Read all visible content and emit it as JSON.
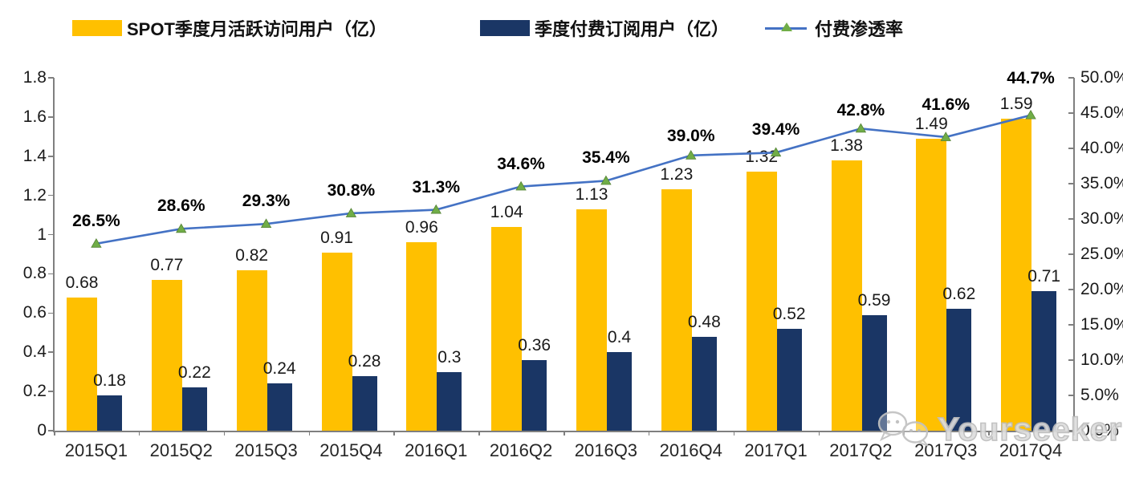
{
  "legend": {
    "items": [
      {
        "label": "SPOT季度月活跃访问用户（亿）",
        "color": "#FFC000",
        "type": "bar-swatch"
      },
      {
        "label": "季度付费订阅用户（亿）",
        "color": "#1A3665",
        "type": "bar-swatch"
      },
      {
        "label": "付费渗透率",
        "color": "#4472C4",
        "marker_color": "#70AD47",
        "type": "line-swatch"
      }
    ]
  },
  "chart_data": {
    "type": "combo-bar-line",
    "categories": [
      "2015Q1",
      "2015Q2",
      "2015Q3",
      "2015Q4",
      "2016Q1",
      "2016Q2",
      "2016Q3",
      "2016Q4",
      "2017Q1",
      "2017Q2",
      "2017Q3",
      "2017Q4"
    ],
    "series": [
      {
        "name": "SPOT季度月活跃访问用户（亿）",
        "type": "bar",
        "axis": "left",
        "color": "#FFC000",
        "values": [
          0.68,
          0.77,
          0.82,
          0.91,
          0.96,
          1.04,
          1.13,
          1.23,
          1.32,
          1.38,
          1.49,
          1.59
        ],
        "labels": [
          "0.68",
          "0.77",
          "0.82",
          "0.91",
          "0.96",
          "1.04",
          "1.13",
          "1.23",
          "1.32",
          "1.38",
          "1.49",
          "1.59"
        ]
      },
      {
        "name": "季度付费订阅用户（亿）",
        "type": "bar",
        "axis": "left",
        "color": "#1A3665",
        "values": [
          0.18,
          0.22,
          0.24,
          0.28,
          0.3,
          0.36,
          0.4,
          0.48,
          0.52,
          0.59,
          0.62,
          0.71
        ],
        "labels": [
          "0.18",
          "0.22",
          "0.24",
          "0.28",
          "0.3",
          "0.36",
          "0.4",
          "0.48",
          "0.52",
          "0.59",
          "0.62",
          "0.71"
        ]
      },
      {
        "name": "付费渗透率",
        "type": "line",
        "axis": "right",
        "color": "#4472C4",
        "marker": "triangle",
        "marker_color": "#70AD47",
        "values": [
          26.5,
          28.6,
          29.3,
          30.8,
          31.3,
          34.6,
          35.4,
          39.0,
          39.4,
          42.8,
          41.6,
          44.7
        ],
        "labels": [
          "26.5%",
          "28.6%",
          "29.3%",
          "30.8%",
          "31.3%",
          "34.6%",
          "35.4%",
          "39.0%",
          "39.4%",
          "42.8%",
          "41.6%",
          "44.7%"
        ]
      }
    ],
    "left_axis": {
      "min": 0,
      "max": 1.8,
      "step": 0.2,
      "ticks": [
        "0",
        "0.2",
        "0.4",
        "0.6",
        "0.8",
        "1",
        "1.2",
        "1.4",
        "1.6",
        "1.8"
      ]
    },
    "right_axis": {
      "min": 0,
      "max": 50,
      "step": 5,
      "ticks": [
        "0.0%",
        "5.0%",
        "10.0%",
        "15.0%",
        "20.0%",
        "25.0%",
        "30.0%",
        "35.0%",
        "40.0%",
        "45.0%",
        "50.0%"
      ]
    },
    "grid": false,
    "legend_position": "top"
  },
  "watermark": {
    "text": "Yourseeker"
  }
}
